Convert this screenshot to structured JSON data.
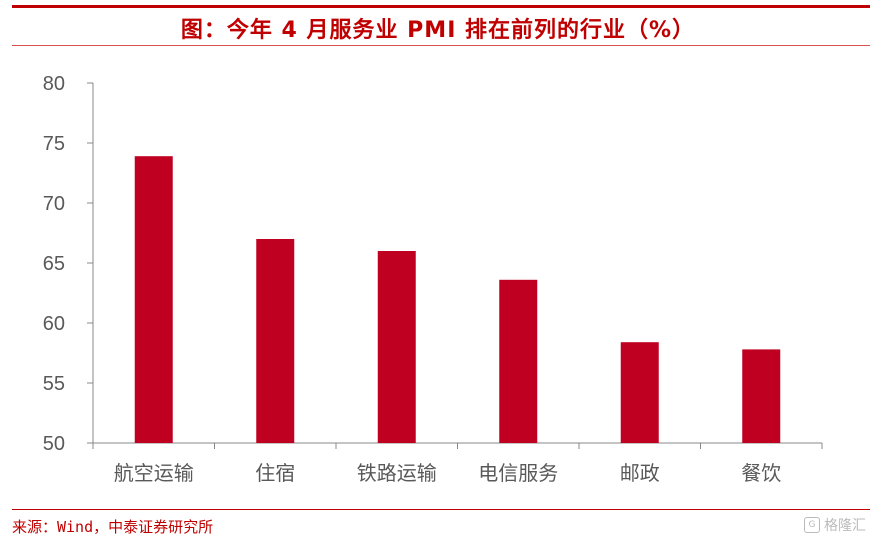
{
  "title": "图：今年 4 月服务业 PMI 排在前列的行业（%）",
  "source": "来源：Wind，中泰证券研究所",
  "watermark": "格隆汇",
  "colors": {
    "accent": "#c00000",
    "bar": "#c00020",
    "axis": "#888888",
    "tick_text": "#595959"
  },
  "chart_data": {
    "type": "bar",
    "categories": [
      "航空运输",
      "住宿",
      "铁路运输",
      "电信服务",
      "邮政",
      "餐饮"
    ],
    "values": [
      73.9,
      67.0,
      66.0,
      63.6,
      58.4,
      57.8
    ],
    "ylim": [
      50,
      80
    ],
    "yticks": [
      50,
      55,
      60,
      65,
      70,
      75,
      80
    ],
    "grid": false,
    "legend": "none"
  }
}
